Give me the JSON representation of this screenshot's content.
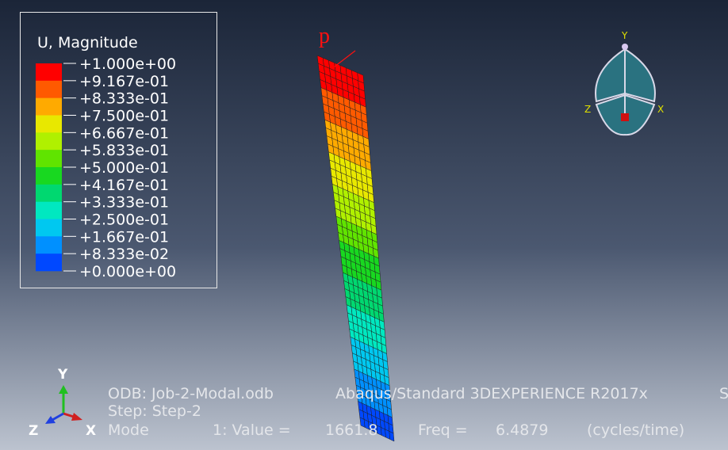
{
  "legend": {
    "title": "U, Magnitude",
    "labels": [
      "+1.000e+00",
      "+9.167e-01",
      "+8.333e-01",
      "+7.500e-01",
      "+6.667e-01",
      "+5.833e-01",
      "+5.000e-01",
      "+4.167e-01",
      "+3.333e-01",
      "+2.500e-01",
      "+1.667e-01",
      "+8.333e-02",
      "+0.000e+00"
    ],
    "colors": [
      "#ff0000",
      "#ff5a00",
      "#ffaa00",
      "#e8e800",
      "#b0f000",
      "#60e400",
      "#18d820",
      "#00d870",
      "#00e8c0",
      "#00c8f0",
      "#0090ff",
      "#0048ff",
      "#0000d8"
    ]
  },
  "annotation": "p",
  "view_triad": {
    "y": "Y",
    "z": "Z",
    "x": "X"
  },
  "global_triad": {
    "y": "Y",
    "z": "Z",
    "x": "X"
  },
  "info": {
    "odb": "ODB: Job-2-Modal.odb",
    "product": "Abaqus/Standard 3DEXPERIENCE R2017x",
    "cut": "S",
    "step": "Step: Step-2",
    "mode": "Mode",
    "value_label": "1: Value =",
    "value": "1661.8",
    "freq_label": "Freq =",
    "freq": "6.4879",
    "freq_unit": "(cycles/time)"
  }
}
